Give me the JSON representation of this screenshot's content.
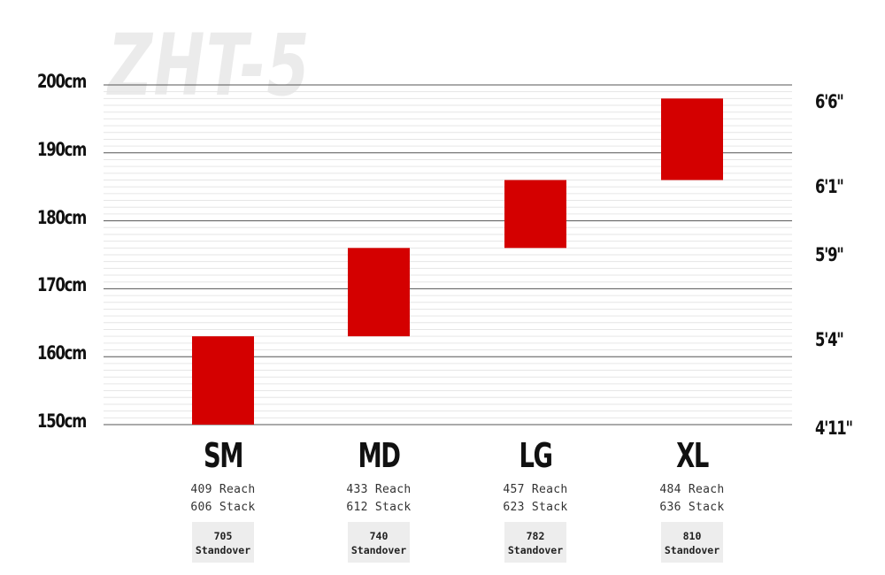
{
  "watermark": "ZHT-5",
  "colors": {
    "bar": "#d40000",
    "grid_major": "#555555",
    "grid_minor": "#e6e6e6"
  },
  "chart_data": {
    "type": "bar",
    "subtype": "floating-range",
    "title": "",
    "xlabel": "",
    "ylabel": "",
    "ylim": [
      150,
      200
    ],
    "grid": true,
    "y_ticks_left": [
      "200cm",
      "190cm",
      "180cm",
      "170cm",
      "160cm",
      "150cm"
    ],
    "y_tick_values_left": [
      200,
      190,
      180,
      170,
      160,
      150
    ],
    "y_ticks_right": [
      "6'6\"",
      "6'1\"",
      "5'9\"",
      "5'4\"",
      "4'11\""
    ],
    "y_tick_values_right": [
      198,
      185.5,
      175.5,
      163,
      150
    ],
    "categories": [
      "SM",
      "MD",
      "LG",
      "XL"
    ],
    "ranges": [
      [
        150,
        163
      ],
      [
        163,
        176
      ],
      [
        176,
        186
      ],
      [
        186,
        198
      ]
    ],
    "specs": [
      {
        "reach": "409 Reach",
        "stack": "606 Stack",
        "standover_value": "705",
        "standover_label": "Standover"
      },
      {
        "reach": "433 Reach",
        "stack": "612 Stack",
        "standover_value": "740",
        "standover_label": "Standover"
      },
      {
        "reach": "457 Reach",
        "stack": "623 Stack",
        "standover_value": "782",
        "standover_label": "Standover"
      },
      {
        "reach": "484 Reach",
        "stack": "636 Stack",
        "standover_value": "810",
        "standover_label": "Standover"
      }
    ]
  }
}
